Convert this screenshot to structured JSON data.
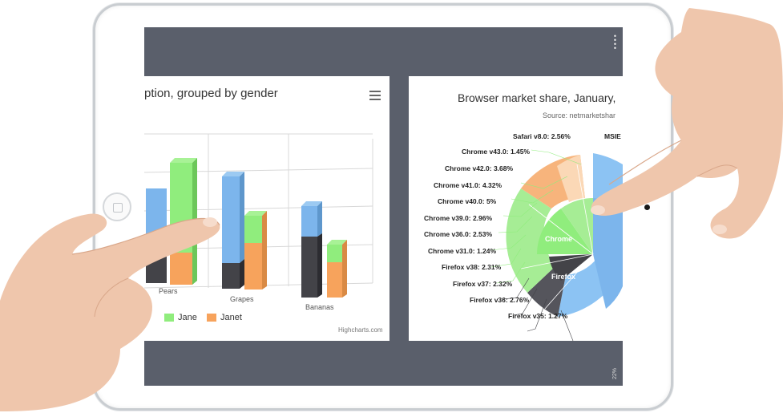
{
  "left_chart": {
    "title": "ption, grouped by gender",
    "legend": [
      {
        "label": "Jane",
        "color": "#90ed7d"
      },
      {
        "label": "Janet",
        "color": "#f7a35c"
      }
    ],
    "credits": "Highcharts.com",
    "chart_data": {
      "type": "bar",
      "categories": [
        "Pears",
        "Grapes",
        "Bananas"
      ],
      "series": [
        {
          "name": "",
          "stack": "male",
          "color": "#7cb5ec",
          "values": [
            null,
            3,
            2
          ]
        },
        {
          "name": "",
          "stack": "male",
          "color": "#434348",
          "values": [
            null,
            1,
            3
          ]
        },
        {
          "name": "Jane",
          "stack": "female",
          "color": "#90ed7d",
          "values": [
            null,
            1,
            0.5
          ]
        },
        {
          "name": "Janet",
          "stack": "female",
          "color": "#f7a35c",
          "values": [
            null,
            2,
            2
          ]
        }
      ],
      "grid": true
    }
  },
  "right_chart": {
    "title": "Browser market share, January,",
    "subtitle": "Source: netmarketshar",
    "chart_data": {
      "type": "pie",
      "inner_labels": [
        "Chrome",
        "Firefox"
      ],
      "outer_labels": [
        "Safari v8.0: 2.56%",
        "MSIE",
        "Chrome v43.0: 1.45%",
        "Chrome v42.0: 3.68%",
        "Chrome v41.0: 4.32%",
        "Chrome v40.0: 5%",
        "Chrome v39.0: 2.96%",
        "Chrome v36.0: 2.53%",
        "Chrome v31.0: 1.24%",
        "Firefox v38: 2.31%",
        "Firefox v37: 2.32%",
        "Firefox v36: 2.76%",
        "Firefox v35: 1.27%"
      ]
    }
  },
  "status_bar": {
    "battery": "22%"
  }
}
